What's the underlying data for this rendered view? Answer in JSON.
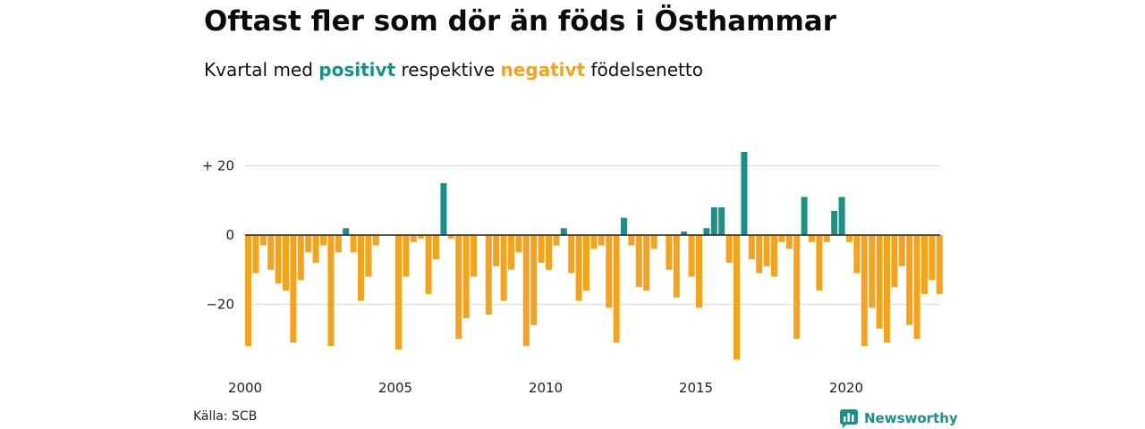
{
  "header": {
    "title": "Oftast fler som dör än föds i Östhammar",
    "subtitle_prefix": "Kvartal med",
    "subtitle_positive": "positivt",
    "subtitle_middle": "respektive",
    "subtitle_negative": "negativt",
    "subtitle_suffix": "födelsenetto"
  },
  "footer": {
    "source": "Källa: SCB",
    "brand": "Newsworthy"
  },
  "colors": {
    "positive": "#1a9187",
    "negative": "#f5a31c",
    "grid": "#dddddd",
    "baseline": "#222222"
  },
  "chart_data": {
    "type": "bar",
    "title": "Oftast fler som dör än föds i Östhammar",
    "subtitle": "Kvartal med positivt respektive negativt födelsenetto",
    "x_start_year": 2000,
    "x_tick_years": [
      2000,
      2005,
      2010,
      2015,
      2020
    ],
    "x_tick_labels": [
      "2000",
      "2005",
      "2010",
      "2015",
      "2020"
    ],
    "y_ticks": [
      20,
      0,
      -20
    ],
    "y_tick_labels": [
      "+ 20",
      "0",
      "−20"
    ],
    "ylim": [
      -36,
      24
    ],
    "grid": true,
    "values": [
      -32,
      -11,
      -3,
      -10,
      -14,
      -16,
      -31,
      -13,
      -5,
      -8,
      -3,
      -32,
      -5,
      2,
      -5,
      -19,
      -12,
      -3,
      0,
      0,
      -33,
      -12,
      -2,
      -1,
      -17,
      -7,
      15,
      -1,
      -30,
      -24,
      -12,
      0,
      -23,
      -9,
      -19,
      -10,
      -5,
      -32,
      -26,
      -8,
      -10,
      -3,
      2,
      -11,
      -19,
      -16,
      -4,
      -3,
      -21,
      -31,
      5,
      -3,
      -15,
      -16,
      -4,
      0,
      -10,
      -18,
      1,
      -12,
      -21,
      2,
      8,
      8,
      -8,
      -36,
      24,
      -7,
      -11,
      -9,
      -12,
      -2,
      -4,
      -30,
      11,
      -2,
      -16,
      -2,
      7,
      11,
      -2,
      -11,
      -32,
      -21,
      -27,
      -31,
      -15,
      -9,
      -26,
      -30,
      -17,
      -13,
      -17
    ]
  }
}
